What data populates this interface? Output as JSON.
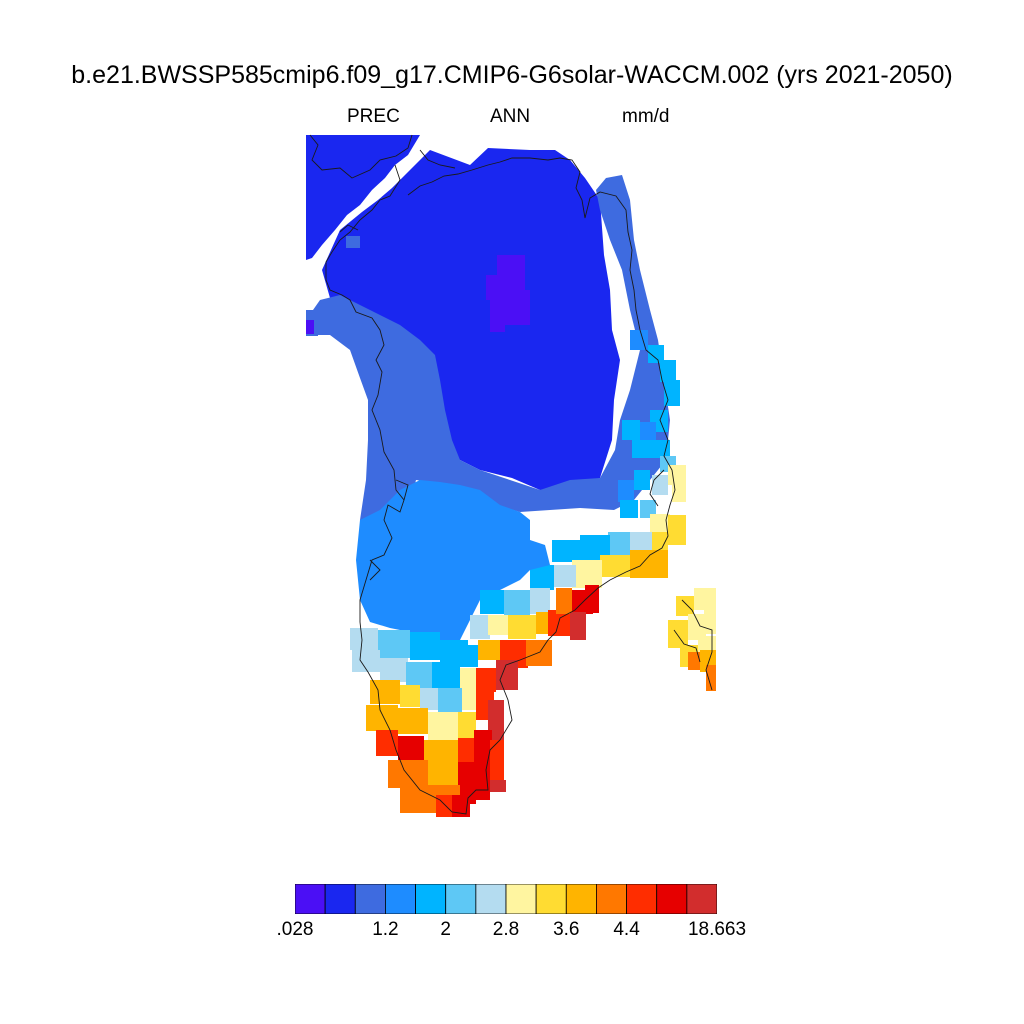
{
  "title": "b.e21.BWSSP585cmip6.f09_g17.CMIP6-G6solar-WACCM.002 (yrs 2021-2050)",
  "subtitle": {
    "variable": "PREC",
    "season": "ANN",
    "units": "mm/d"
  },
  "colorbar": {
    "colors": [
      "#4b0ff5",
      "#1a27f0",
      "#3e6be0",
      "#1e8cff",
      "#00b4ff",
      "#5ec8f5",
      "#b4dcf0",
      "#fff5a0",
      "#ffdc32",
      "#ffb400",
      "#ff7800",
      "#ff2d00",
      "#e60000",
      "#d22d2d"
    ],
    "labels": [
      {
        "text": ".028",
        "boundary": 0
      },
      {
        "text": "1.2",
        "boundary": 3
      },
      {
        "text": "2",
        "boundary": 5
      },
      {
        "text": "2.8",
        "boundary": 7
      },
      {
        "text": "3.6",
        "boundary": 9
      },
      {
        "text": "4.4",
        "boundary": 11
      },
      {
        "text": "18.663",
        "boundary": 14
      }
    ]
  }
}
